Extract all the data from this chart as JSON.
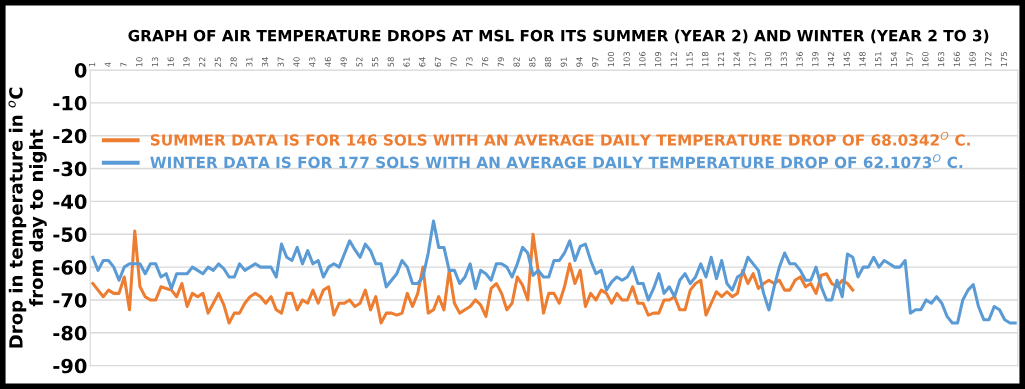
{
  "chart_data": {
    "type": "line",
    "title": "GRAPH OF AIR TEMPERATURE DROPS AT MSL FOR ITS SUMMER (YEAR 2) AND WINTER (YEAR 2 TO 3)",
    "ylabel": "Drop in temperature in $^{o}$C\nfrom day to night",
    "x": [
      1,
      2,
      3,
      4,
      5,
      6,
      7,
      8,
      9,
      10,
      11,
      12,
      13,
      14,
      15,
      16,
      17,
      18,
      19,
      20,
      21,
      22,
      23,
      24,
      25,
      26,
      27,
      28,
      29,
      30,
      31,
      32,
      33,
      34,
      35,
      36,
      37,
      38,
      39,
      40,
      41,
      42,
      43,
      44,
      45,
      46,
      47,
      48,
      49,
      50,
      51,
      52,
      53,
      54,
      55,
      56,
      57,
      58,
      59,
      60,
      61,
      62,
      63,
      64,
      65,
      66,
      67,
      68,
      69,
      70,
      71,
      72,
      73,
      74,
      75,
      76,
      77,
      78,
      79,
      80,
      81,
      82,
      83,
      84,
      85,
      86,
      87,
      88,
      89,
      90,
      91,
      92,
      93,
      94,
      95,
      96,
      97,
      98,
      99,
      100,
      101,
      102,
      103,
      104,
      105,
      106,
      107,
      108,
      109,
      110,
      111,
      112,
      113,
      114,
      115,
      116,
      117,
      118,
      119,
      120,
      121,
      122,
      123,
      124,
      125,
      126,
      127,
      128,
      129,
      130,
      131,
      132,
      133,
      134,
      135,
      136,
      137,
      138,
      139,
      140,
      141,
      142,
      143,
      144,
      145,
      146,
      147,
      148,
      149,
      150,
      151,
      152,
      153,
      154,
      155,
      156,
      157,
      158,
      159,
      160,
      161,
      162,
      163,
      164,
      165,
      166,
      167,
      168,
      169,
      170,
      171,
      172,
      173,
      174,
      175,
      176,
      177
    ],
    "xlim": [
      0.5,
      177.5
    ],
    "xticks": [
      1,
      4,
      7,
      10,
      13,
      16,
      19,
      22,
      25,
      28,
      31,
      34,
      37,
      40,
      43,
      46,
      49,
      52,
      55,
      58,
      61,
      64,
      67,
      70,
      73,
      76,
      79,
      82,
      85,
      88,
      91,
      94,
      97,
      100,
      103,
      106,
      109,
      112,
      115,
      118,
      121,
      124,
      127,
      130,
      133,
      136,
      139,
      142,
      145,
      148,
      151,
      154,
      157,
      160,
      163,
      166,
      169,
      172,
      175
    ],
    "ylim": [
      -90,
      0
    ],
    "yticks": [
      0,
      -10,
      -20,
      -30,
      -40,
      -50,
      -60,
      -70,
      -80,
      -90
    ],
    "grid": "y",
    "legend": "top left",
    "marker": "none",
    "line_style": "solid",
    "series": [
      {
        "name": "SUMMER DATA IS FOR 146 SOLS WITH AN AVERAGE DAILY TEMPERATURE DROP OF 68.0342$^{O}$ C.",
        "color": "#ed7d31",
        "values": [
          -65,
          -67,
          -69,
          -67,
          -68,
          -68,
          -63,
          -73,
          -49,
          -66,
          -69,
          -70,
          -70,
          -66,
          -66.5,
          -67,
          -69,
          -65,
          -72,
          -68,
          -69,
          -68,
          -74,
          -71,
          -68,
          -71.5,
          -77,
          -74,
          -74,
          -71,
          -69,
          -68,
          -69,
          -71,
          -69,
          -73,
          -74,
          -68,
          -68,
          -73,
          -70,
          -71,
          -67,
          -71,
          -67,
          -66,
          -74.6,
          -71,
          -71,
          -70,
          -72,
          -71,
          -67,
          -73,
          -69,
          -77,
          -74,
          -74,
          -74.6,
          -74,
          -68,
          -72,
          -68,
          -60,
          -74,
          -73,
          -69,
          -73,
          -61,
          -71,
          -74,
          -73,
          -72,
          -70,
          -71.5,
          -75,
          -66.5,
          -65,
          -68,
          -73,
          -71,
          -63,
          -65.5,
          -70,
          -50,
          -61.5,
          -74,
          -68,
          -68,
          -71,
          -66,
          -59,
          -65,
          -61,
          -72,
          -68,
          -70,
          -67,
          -68,
          -71,
          -68,
          -70,
          -70,
          -66,
          -71,
          -71,
          -74.6,
          -74,
          -74,
          -70,
          -70,
          -69,
          -73,
          -73,
          -67,
          -65,
          -64,
          -74.6,
          -71,
          -67.5,
          -69,
          -67.5,
          -69,
          -68,
          -61,
          -65,
          -62,
          -66.5,
          -65,
          -64,
          -65,
          -64,
          -67,
          -67,
          -64,
          -63,
          -66,
          -65,
          -68,
          -62.5,
          -62,
          -65,
          -66,
          -64,
          -65,
          -67,
          null,
          null,
          null,
          null,
          null,
          null,
          null,
          null,
          null,
          null,
          null,
          null,
          null,
          null,
          null,
          null,
          null,
          null,
          null,
          null,
          null,
          null,
          null,
          null,
          null,
          null,
          null,
          null,
          null,
          null,
          null
        ]
      },
      {
        "name": "WINTER DATA IS FOR 177 SOLS WITH AN AVERAGE DAILY TEMPERATURE DROP OF 62.1073$^{O}$ C.",
        "color": "#5b9bd5",
        "values": [
          -57,
          -61,
          -58,
          -58,
          -60,
          -64,
          -60,
          -59,
          -59,
          -59,
          -62,
          -59,
          -59,
          -63,
          -62,
          -66.5,
          -62,
          -62,
          -62,
          -60,
          -61,
          -62,
          -60,
          -61,
          -59,
          -60.5,
          -63,
          -63,
          -59,
          -61,
          -60,
          -59,
          -60,
          -60,
          -60,
          -63,
          -53,
          -57,
          -58,
          -54,
          -59,
          -55,
          -59,
          -58,
          -63,
          -60,
          -59,
          -60,
          -56,
          -52,
          -54.7,
          -57,
          -53,
          -55,
          -59,
          -59,
          -66,
          -64,
          -62,
          -58,
          -60,
          -65,
          -65,
          -63,
          -55.7,
          -46,
          -54,
          -54,
          -61,
          -61,
          -65,
          -63,
          -59,
          -66.5,
          -61,
          -62,
          -64,
          -59,
          -59,
          -60,
          -63,
          -59,
          -54,
          -55.7,
          -62.5,
          -61,
          -63,
          -63,
          -58,
          -58,
          -55.7,
          -52,
          -58,
          -53.7,
          -53,
          -58,
          -62,
          -61,
          -67,
          -64.5,
          -63,
          -64,
          -63,
          -60,
          -65,
          -65,
          -70,
          -66.5,
          -62,
          -68,
          -66,
          -69,
          -64,
          -62,
          -65,
          -63,
          -59,
          -63,
          -57,
          -63.5,
          -58,
          -65,
          -67,
          -63,
          -62,
          -57,
          -59,
          -61,
          -68,
          -73,
          -66,
          -60,
          -55.7,
          -59,
          -59,
          -61,
          -64,
          -64,
          -60,
          -66,
          -70,
          -70,
          -64,
          -69,
          -56,
          -57,
          -63,
          -60,
          -60,
          -57,
          -60,
          -58,
          -59,
          -60,
          -60,
          -58,
          -74,
          -73,
          -73,
          -70,
          -71,
          -69,
          -71,
          -75,
          -77,
          -77,
          -70,
          -67,
          -65.3,
          -72,
          -76,
          -76,
          -72,
          -73,
          -76,
          -77,
          -77
        ]
      }
    ]
  }
}
